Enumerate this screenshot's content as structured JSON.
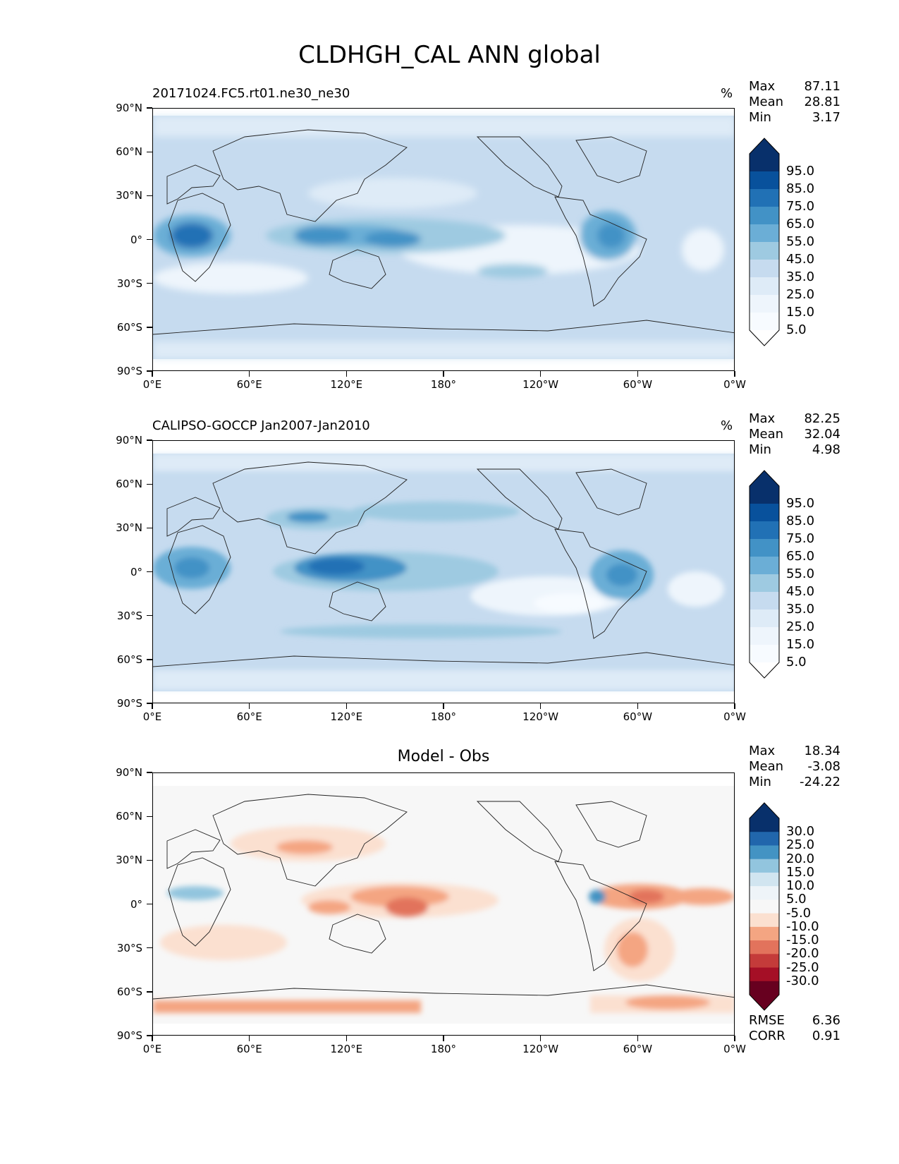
{
  "figure_title": "CLDHGH_CAL ANN global",
  "lat_ticks": [
    "90°N",
    "60°N",
    "30°N",
    "0°",
    "30°S",
    "60°S",
    "90°S"
  ],
  "lon_ticks": [
    "0°E",
    "60°E",
    "120°E",
    "180°",
    "120°W",
    "60°W",
    "0°W"
  ],
  "panels": [
    {
      "title_left": "20171024.FC5.rt01.ne30_ne30",
      "title_center": "",
      "units": "%",
      "stats": [
        {
          "label": "Max",
          "value": "87.11"
        },
        {
          "label": "Mean",
          "value": "28.81"
        },
        {
          "label": "Min",
          "value": "3.17"
        }
      ],
      "colorbar": {
        "labels": [
          "95.0",
          "85.0",
          "75.0",
          "65.0",
          "55.0",
          "45.0",
          "35.0",
          "25.0",
          "15.0",
          "5.0"
        ],
        "colors": [
          "#08306b",
          "#08519c",
          "#2171b5",
          "#4292c6",
          "#6baed6",
          "#9ecae1",
          "#c6dbef",
          "#deebf7",
          "#eef5fc",
          "#f7fbff"
        ],
        "extend_colors": [
          "#08306b",
          "#ffffff"
        ]
      },
      "footer_stats": []
    },
    {
      "title_left": "CALIPSO-GOCCP Jan2007-Jan2010",
      "title_center": "",
      "units": "%",
      "stats": [
        {
          "label": "Max",
          "value": "82.25"
        },
        {
          "label": "Mean",
          "value": "32.04"
        },
        {
          "label": "Min",
          "value": "4.98"
        }
      ],
      "colorbar": {
        "labels": [
          "95.0",
          "85.0",
          "75.0",
          "65.0",
          "55.0",
          "45.0",
          "35.0",
          "25.0",
          "15.0",
          "5.0"
        ],
        "colors": [
          "#08306b",
          "#08519c",
          "#2171b5",
          "#4292c6",
          "#6baed6",
          "#9ecae1",
          "#c6dbef",
          "#deebf7",
          "#eef5fc",
          "#f7fbff"
        ],
        "extend_colors": [
          "#08306b",
          "#ffffff"
        ]
      },
      "footer_stats": []
    },
    {
      "title_left": "",
      "title_center": "Model - Obs",
      "units": "",
      "stats": [
        {
          "label": "Max",
          "value": "18.34"
        },
        {
          "label": "Mean",
          "value": "-3.08"
        },
        {
          "label": "Min",
          "value": "-24.22"
        }
      ],
      "colorbar": {
        "labels": [
          "30.0",
          "25.0",
          "20.0",
          "15.0",
          "10.0",
          "5.0",
          "-5.0",
          "-10.0",
          "-15.0",
          "-20.0",
          "-25.0",
          "-30.0"
        ],
        "colors": [
          "#08306b",
          "#2166ac",
          "#4393c3",
          "#92c5de",
          "#d1e5f0",
          "#eef4f8",
          "#f7f7f7",
          "#fbe0d0",
          "#f4a582",
          "#e2735c",
          "#c43b3a",
          "#a50f26",
          "#67001f"
        ],
        "extend_colors": [
          "#08306b",
          "#67001f"
        ]
      },
      "footer_stats": [
        {
          "label": "RMSE",
          "value": "6.36"
        },
        {
          "label": "CORR",
          "value": "0.91"
        }
      ]
    }
  ]
}
